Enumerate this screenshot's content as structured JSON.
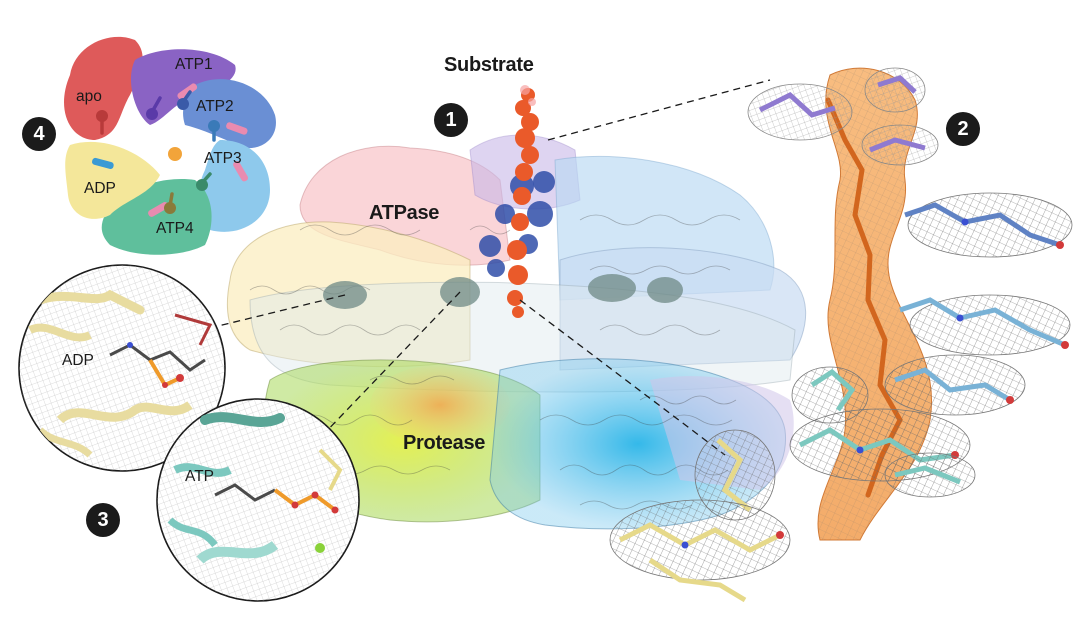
{
  "labels": {
    "substrate": "Substrate",
    "atpase": "ATPase",
    "protease": "Protease",
    "apo": "apo",
    "atp1": "ATP1",
    "atp2": "ATP2",
    "atp3": "ATP3",
    "atp4": "ATP4",
    "adp_schematic": "ADP",
    "adp_inset": "ADP",
    "atp_inset": "ATP"
  },
  "badges": {
    "b1": "1",
    "b2": "2",
    "b3": "3",
    "b4": "4"
  },
  "colors": {
    "apo": "#de5a5a",
    "atp1": "#8a63c4",
    "atp2": "#6a8fd4",
    "atp3": "#8ec9ec",
    "atp4": "#5fbf9c",
    "adp": "#f4e79a",
    "substrate": "#ea5a2a",
    "badge": "#1b1b1b"
  }
}
